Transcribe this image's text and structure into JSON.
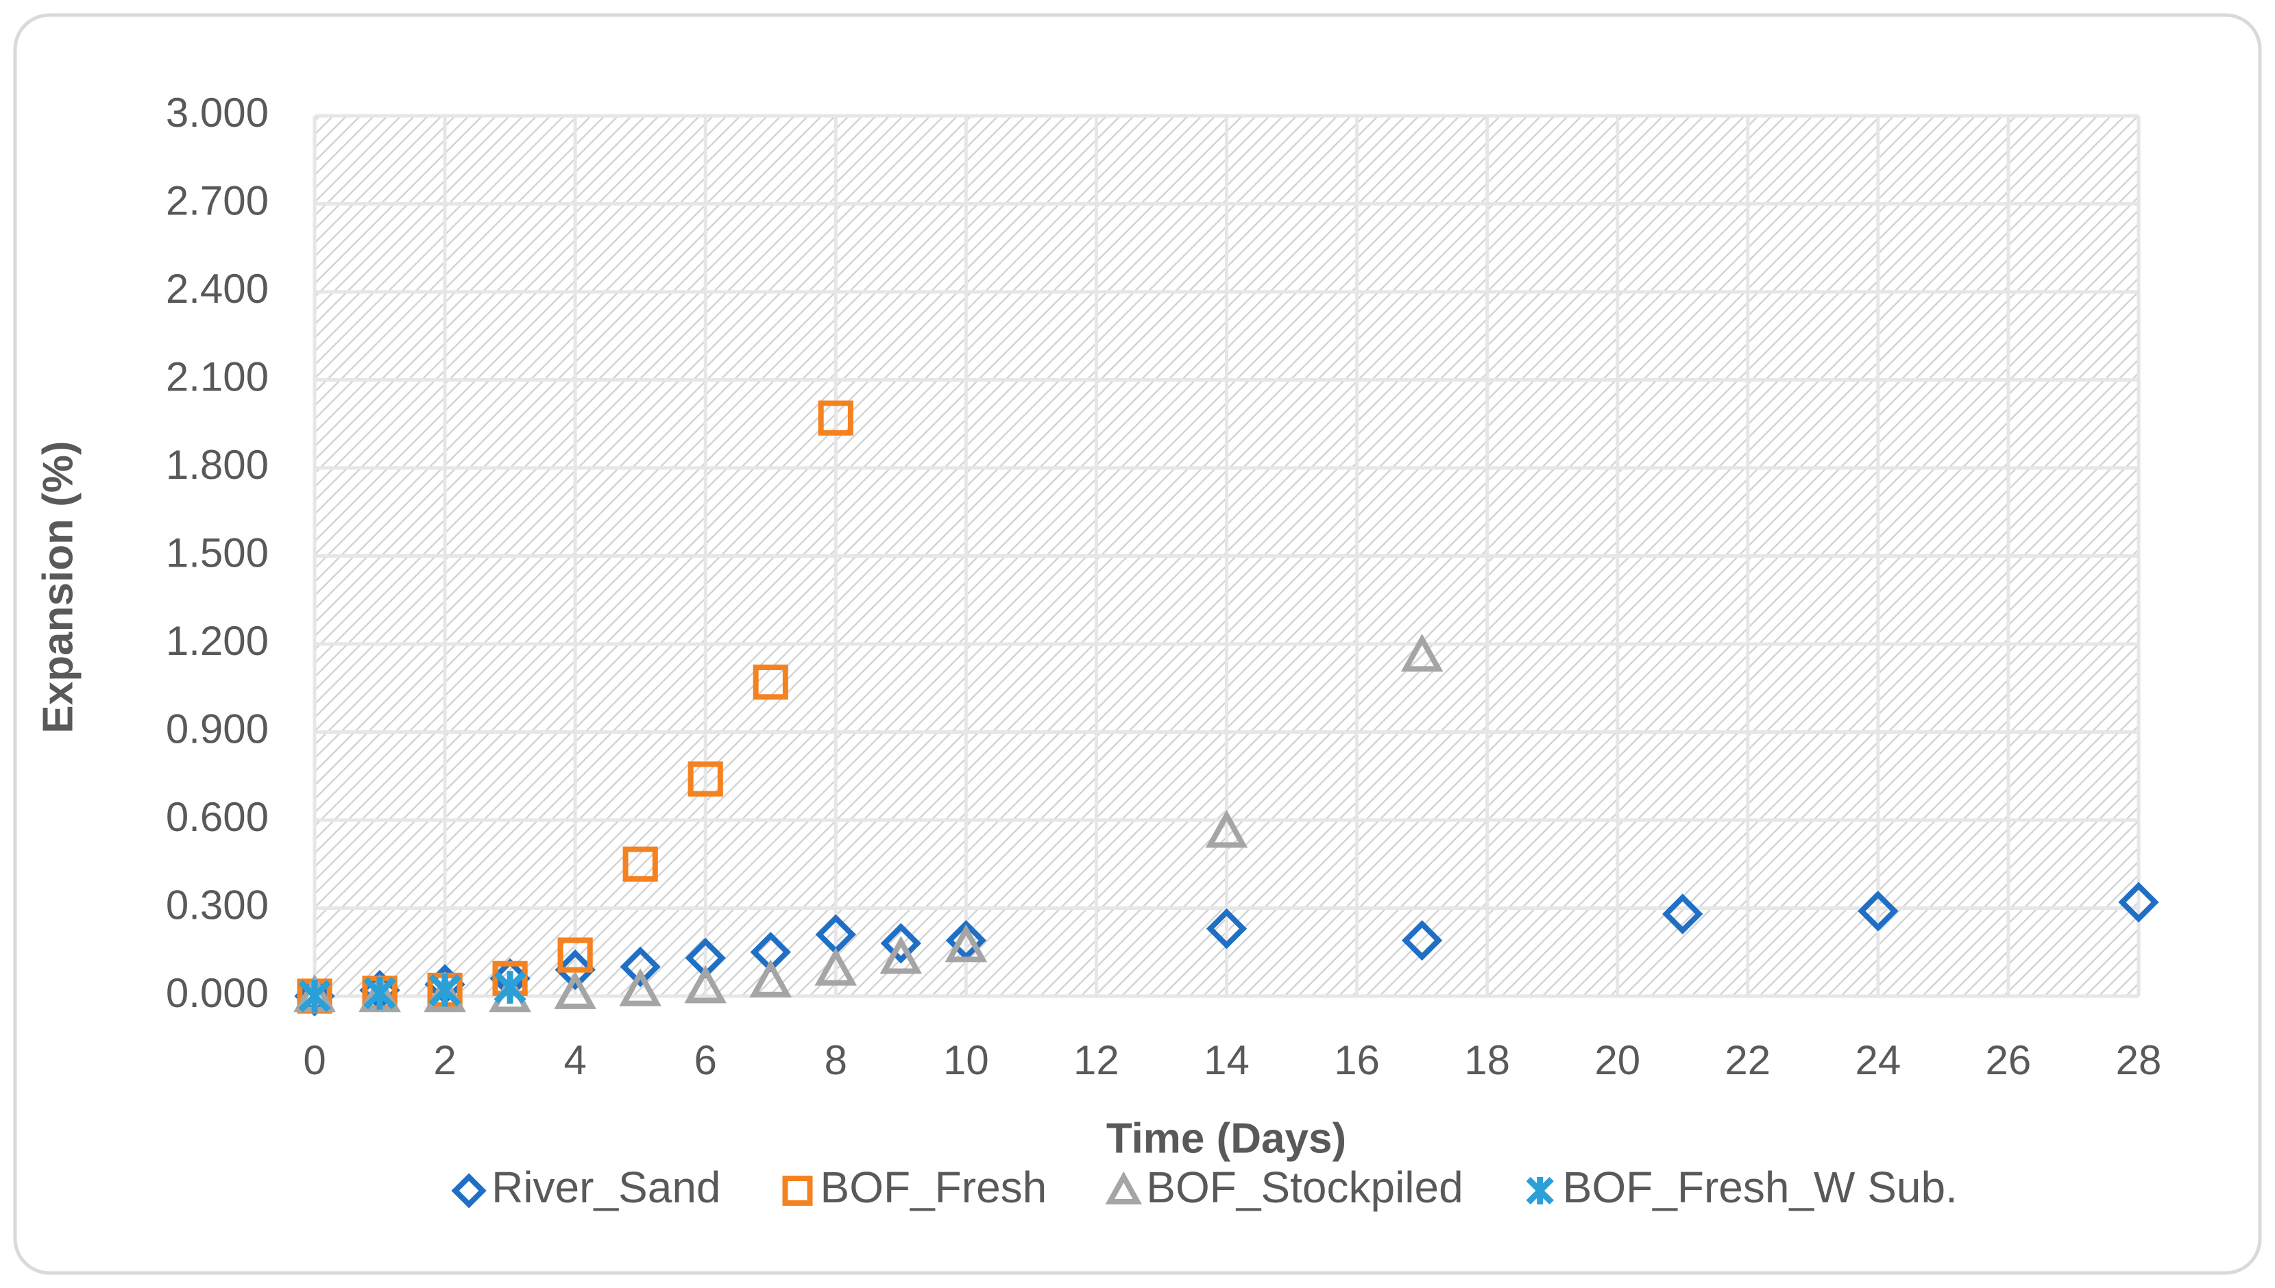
{
  "chart_data": {
    "type": "scatter",
    "x_label": "Time (Days)",
    "y_label": "Expansion (%)",
    "xlim": [
      0,
      28
    ],
    "xticks": [
      0,
      2,
      4,
      6,
      8,
      10,
      12,
      14,
      16,
      18,
      20,
      22,
      24,
      26,
      28
    ],
    "ylim": [
      0,
      3
    ],
    "yticks": [
      {
        "value": 0,
        "label": "0.000"
      },
      {
        "value": 0.3,
        "label": "0.300"
      },
      {
        "value": 0.6,
        "label": "0.600"
      },
      {
        "value": 0.9,
        "label": "0.900"
      },
      {
        "value": 1.2,
        "label": "1.200"
      },
      {
        "value": 1.5,
        "label": "1.500"
      },
      {
        "value": 1.8,
        "label": "1.800"
      },
      {
        "value": 2.1,
        "label": "2.100"
      },
      {
        "value": 2.4,
        "label": "2.400"
      },
      {
        "value": 2.7,
        "label": "2.700"
      },
      {
        "value": 3,
        "label": "3.000"
      }
    ],
    "grid": true,
    "legend": "bottom",
    "series": [
      {
        "name": "River_Sand",
        "color": "#1f6fc5",
        "marker": "diamond",
        "x": [
          0,
          1,
          2,
          3,
          4,
          5,
          6,
          7,
          8,
          9,
          10,
          14,
          17,
          21,
          24,
          28
        ],
        "values": [
          0.0,
          0.02,
          0.04,
          0.06,
          0.09,
          0.1,
          0.13,
          0.15,
          0.21,
          0.18,
          0.19,
          0.23,
          0.19,
          0.28,
          0.29,
          0.32
        ]
      },
      {
        "name": "BOF_Fresh",
        "color": "#f58220",
        "marker": "square",
        "x": [
          0,
          1,
          2,
          3,
          4,
          5,
          6,
          7,
          8
        ],
        "values": [
          0.0,
          0.01,
          0.02,
          0.06,
          0.14,
          0.45,
          0.74,
          1.07,
          1.97
        ]
      },
      {
        "name": "BOF_Stockpiled",
        "color": "#a5a5a5",
        "marker": "triangle",
        "x": [
          0,
          1,
          2,
          3,
          4,
          5,
          6,
          7,
          8,
          9,
          10,
          14,
          17
        ],
        "values": [
          0.0,
          0.0,
          0.0,
          0.0,
          0.01,
          0.02,
          0.03,
          0.05,
          0.09,
          0.13,
          0.17,
          0.56,
          1.16
        ]
      },
      {
        "name": "BOF_Fresh_W Sub.",
        "color": "#2a9fd8",
        "marker": "star",
        "x": [
          0,
          1,
          2,
          3
        ],
        "values": [
          0.0,
          0.01,
          0.02,
          0.03
        ]
      }
    ]
  }
}
